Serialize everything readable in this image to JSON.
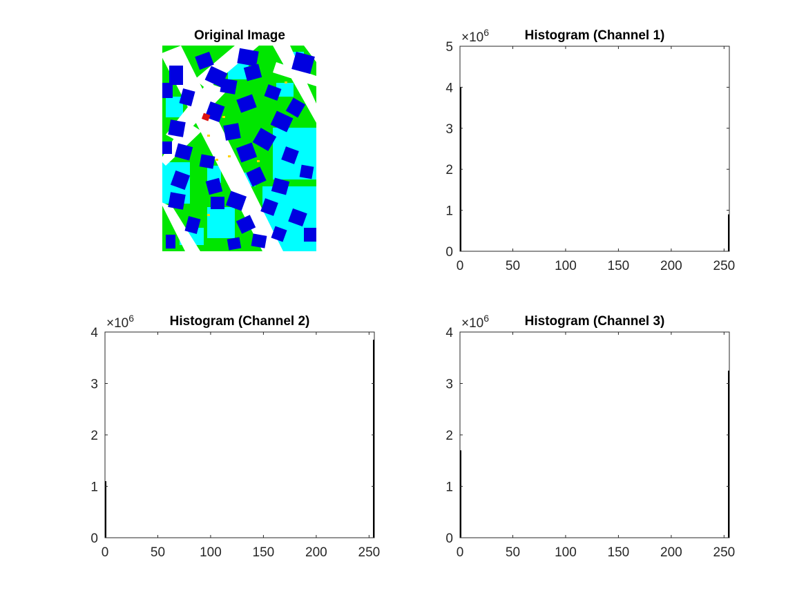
{
  "figure": {
    "image_panel": {
      "title": "Original Image",
      "colors": {
        "green": "#00e600",
        "cyan": "#00ffff",
        "blue": "#0000e0",
        "white": "#ffffff",
        "yellow": "#ffd400",
        "red": "#dd1111"
      }
    }
  },
  "chart_data": [
    {
      "type": "bar",
      "title": "Histogram (Channel 1)",
      "xlabel": "",
      "ylabel": "",
      "xlim": [
        0,
        255
      ],
      "ylim": [
        0,
        5000000
      ],
      "x_ticks": [
        0,
        50,
        100,
        150,
        200,
        250
      ],
      "x_tick_labels": [
        "0",
        "50",
        "100",
        "150",
        "200",
        "250"
      ],
      "y_ticks": [
        0,
        1000000,
        2000000,
        3000000,
        4000000,
        5000000
      ],
      "y_tick_labels": [
        "0",
        "1",
        "2",
        "3",
        "4",
        "5"
      ],
      "y_exponent_label": "×10",
      "y_exponent_power": "6",
      "bars": [
        {
          "x": 0,
          "value": 4000000
        },
        {
          "x": 255,
          "value": 900000
        }
      ],
      "bar_color": "#000000",
      "grid": false
    },
    {
      "type": "bar",
      "title": "Histogram (Channel 2)",
      "xlabel": "",
      "ylabel": "",
      "xlim": [
        0,
        255
      ],
      "ylim": [
        0,
        4000000
      ],
      "x_ticks": [
        0,
        50,
        100,
        150,
        200,
        250
      ],
      "x_tick_labels": [
        "0",
        "50",
        "100",
        "150",
        "200",
        "250"
      ],
      "y_ticks": [
        0,
        1000000,
        2000000,
        3000000,
        4000000
      ],
      "y_tick_labels": [
        "0",
        "1",
        "2",
        "3",
        "4"
      ],
      "y_exponent_label": "×10",
      "y_exponent_power": "6",
      "bars": [
        {
          "x": 0,
          "value": 1100000
        },
        {
          "x": 255,
          "value": 3850000
        }
      ],
      "bar_color": "#000000",
      "grid": false
    },
    {
      "type": "bar",
      "title": "Histogram (Channel 3)",
      "xlabel": "",
      "ylabel": "",
      "xlim": [
        0,
        255
      ],
      "ylim": [
        0,
        4000000
      ],
      "x_ticks": [
        0,
        50,
        100,
        150,
        200,
        250
      ],
      "x_tick_labels": [
        "0",
        "50",
        "100",
        "150",
        "200",
        "250"
      ],
      "y_ticks": [
        0,
        1000000,
        2000000,
        3000000,
        4000000
      ],
      "y_tick_labels": [
        "0",
        "1",
        "2",
        "3",
        "4"
      ],
      "y_exponent_label": "×10",
      "y_exponent_power": "6",
      "bars": [
        {
          "x": 0,
          "value": 1700000
        },
        {
          "x": 255,
          "value": 3250000
        }
      ],
      "bar_color": "#000000",
      "grid": false
    }
  ]
}
